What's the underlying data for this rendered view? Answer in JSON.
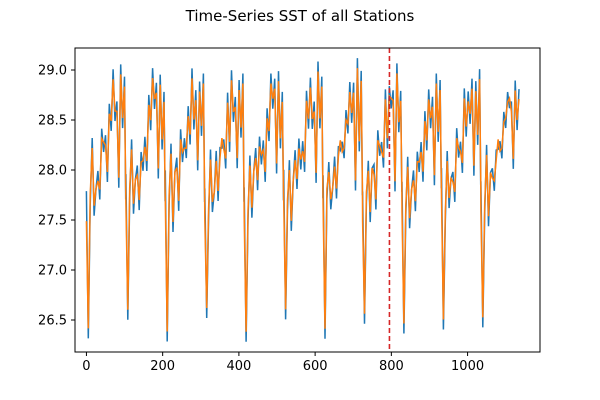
{
  "chart_data": {
    "type": "line",
    "title": "Time-Series SST of all Stations",
    "xlabel": "",
    "ylabel": "",
    "xlim": [
      -30,
      1190
    ],
    "ylim": [
      26.18,
      29.22
    ],
    "x_ticks": [
      0,
      200,
      400,
      600,
      800,
      1000
    ],
    "y_ticks": [
      26.5,
      27.0,
      27.5,
      28.0,
      28.5,
      29.0
    ],
    "grid": false,
    "legend": "none",
    "period": 103.5,
    "series": [
      {
        "color": "#1f77b4",
        "x": [
          0,
          5,
          10,
          15,
          20,
          25,
          30,
          35,
          40,
          45,
          50,
          55,
          60,
          65,
          70,
          75,
          80,
          85,
          90,
          95,
          100,
          103
        ],
        "values": [
          27.9,
          26.4,
          27.6,
          28.2,
          27.5,
          27.9,
          28.1,
          27.7,
          28.3,
          28.1,
          28.4,
          28.0,
          28.7,
          28.3,
          28.9,
          28.5,
          28.8,
          27.9,
          29.0,
          28.3,
          28.9,
          27.8
        ]
      },
      {
        "color": "#ff7f0e",
        "x": [
          0,
          5,
          10,
          15,
          20,
          25,
          30,
          35,
          40,
          45,
          50,
          55,
          60,
          65,
          70,
          75,
          80,
          85,
          90,
          95,
          100,
          103
        ],
        "values": [
          27.6,
          26.5,
          27.7,
          28.1,
          27.6,
          27.9,
          28.0,
          27.8,
          28.2,
          28.2,
          28.3,
          28.1,
          28.6,
          28.4,
          28.8,
          28.6,
          28.7,
          28.0,
          28.9,
          28.4,
          28.8,
          27.9
        ]
      }
    ],
    "annotations": [
      {
        "type": "vline",
        "x": 795,
        "color": "#d62728",
        "style": "dashed"
      }
    ]
  }
}
